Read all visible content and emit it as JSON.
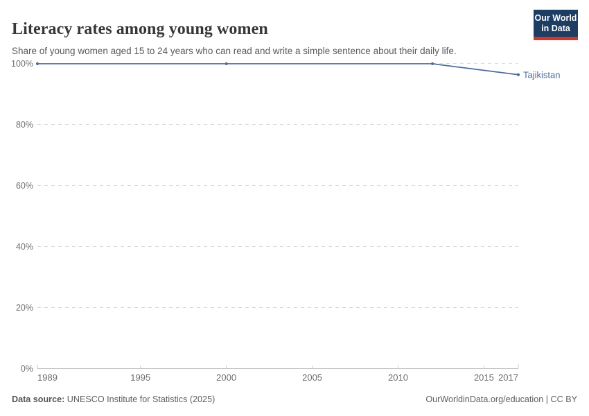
{
  "header": {
    "title": "Literacy rates among young women",
    "subtitle": "Share of young women aged 15 to 24 years who can read and write a simple sentence about their daily life."
  },
  "logo": {
    "line1": "Our World",
    "line2": "in Data",
    "bg_color": "#1d3d63",
    "bar_color": "#d2352c"
  },
  "footer": {
    "datasource_label": "Data source:",
    "datasource_value": " UNESCO Institute for Statistics (2025)",
    "credit": "OurWorldinData.org/education | CC BY"
  },
  "chart_data": {
    "type": "line",
    "title": "Literacy rates among young women",
    "x": [
      1989,
      2000,
      2012,
      2017
    ],
    "series": [
      {
        "name": "Tajikistan",
        "color": "#4c6a9c",
        "values": [
          99.9,
          99.9,
          99.9,
          96.3
        ]
      }
    ],
    "xlabel": "",
    "ylabel": "",
    "xlim": [
      1989,
      2017
    ],
    "ylim": [
      0,
      100
    ],
    "x_ticks": [
      1989,
      1995,
      2000,
      2005,
      2010,
      2015,
      2017
    ],
    "y_ticks": [
      0,
      20,
      40,
      60,
      80,
      100
    ],
    "y_tick_suffix": "%",
    "grid": "dashed-horizontal",
    "legend": "inline-label-right",
    "grid_color": "#dadada",
    "axis_color": "#c8c8c8",
    "tick_label_color": "#6e6e6e"
  }
}
